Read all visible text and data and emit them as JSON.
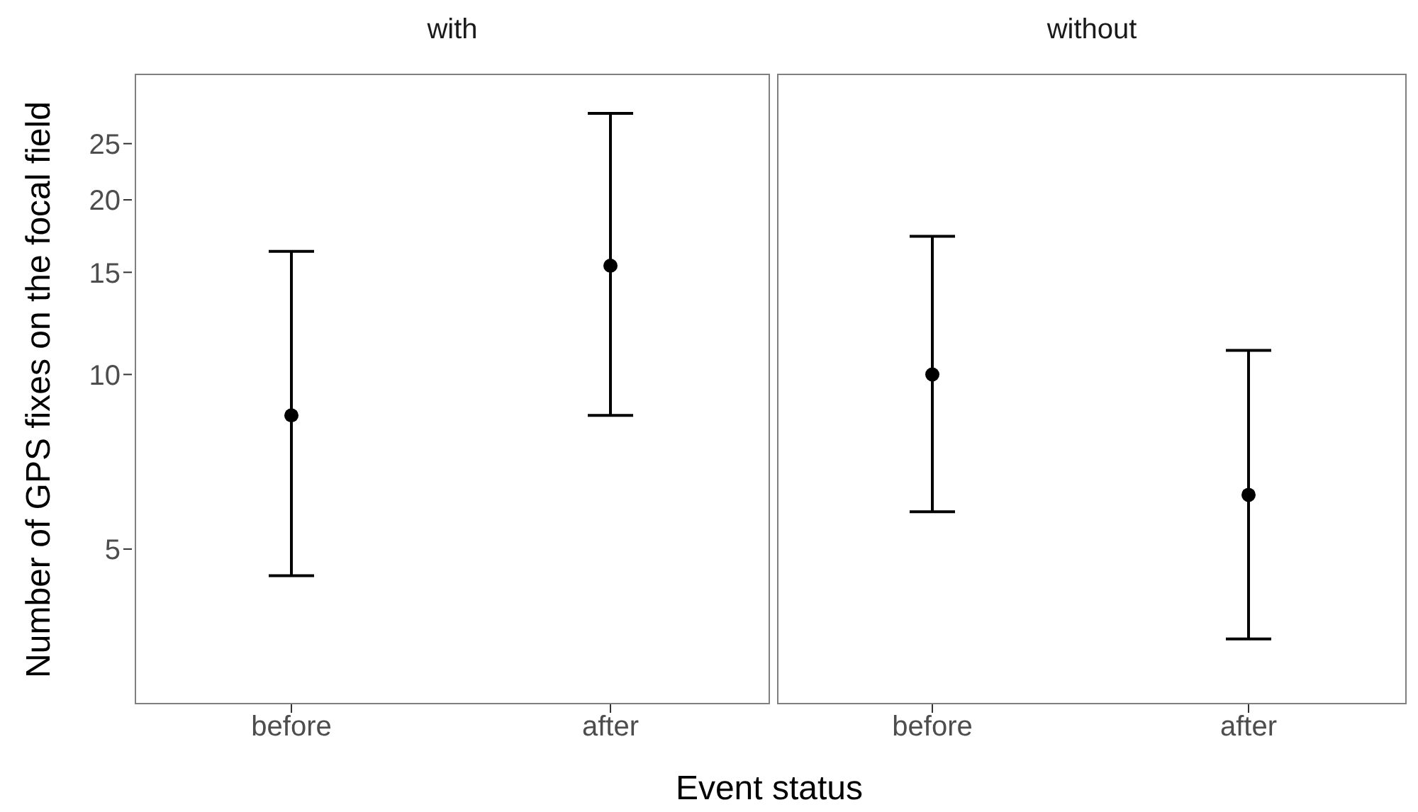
{
  "chart_data": [
    {
      "type": "scatter",
      "title": "with",
      "xlabel": "Event status",
      "ylabel": "Number of GPS fixes on the focal field",
      "categories": [
        "before",
        "after"
      ],
      "values": [
        8.5,
        15.4
      ],
      "errors": [
        [
          4.5,
          16.3
        ],
        [
          8.5,
          28.2
        ]
      ],
      "color": "#000000",
      "marker": "circle",
      "log": true,
      "ylim": [
        2.7,
        33
      ],
      "yticks": [
        5,
        10,
        15,
        20,
        25
      ],
      "grid": false
    },
    {
      "type": "scatter",
      "title": "without",
      "categories": [
        "before",
        "after"
      ],
      "values": [
        10,
        6.2
      ],
      "errors": [
        [
          5.8,
          17.3
        ],
        [
          3.5,
          11
        ]
      ],
      "color": "#000000",
      "marker": "circle",
      "log": true,
      "ylim": [
        2.7,
        33
      ],
      "yticks": [
        5,
        10,
        15,
        20,
        25
      ],
      "grid": false,
      "tick_labels": "x"
    }
  ]
}
